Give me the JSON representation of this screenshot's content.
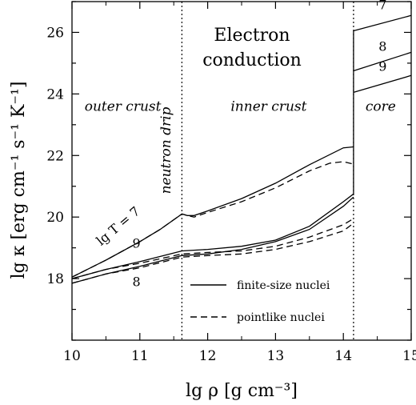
{
  "chart_data": {
    "type": "line",
    "title_lines": [
      "Electron",
      "conduction"
    ],
    "xlabel": "lg ρ  [g cm⁻³]",
    "ylabel": "lg κ  [erg cm⁻¹ s⁻¹ K⁻¹]",
    "xlim": [
      10,
      15
    ],
    "ylim": [
      16,
      27
    ],
    "xticks": [
      10,
      11,
      12,
      13,
      14,
      15
    ],
    "yticks": [
      18,
      20,
      22,
      24,
      26
    ],
    "xtick_labels": [
      "10",
      "11",
      "12",
      "13",
      "14",
      "15"
    ],
    "ytick_labels": [
      "18",
      "20",
      "22",
      "24",
      "26"
    ],
    "boundaries": [
      {
        "x": 11.62,
        "label": "neutron drip"
      },
      {
        "x": 14.15,
        "label": ""
      }
    ],
    "regions": [
      {
        "label": "outer crust",
        "x": 10.75,
        "y": 23.45
      },
      {
        "label": "inner crust",
        "x": 12.9,
        "y": 23.45
      },
      {
        "label": "core",
        "x": 14.55,
        "y": 23.45
      }
    ],
    "legend": {
      "position": "bottom-right",
      "entries": [
        {
          "label": "finite-size nuclei",
          "style": "solid"
        },
        {
          "label": "pointlike nuclei",
          "style": "dashed"
        }
      ]
    },
    "series": [
      {
        "style": "solid",
        "T": 7,
        "x": [
          10,
          10.5,
          11,
          11.3,
          11.62,
          11.7,
          11.8,
          12.0,
          12.5,
          13.0,
          13.5,
          14.0,
          14.15
        ],
        "y": [
          18.05,
          18.6,
          19.2,
          19.6,
          20.1,
          20.05,
          20.05,
          20.2,
          20.6,
          21.1,
          21.7,
          22.25,
          22.28
        ]
      },
      {
        "style": "dashed",
        "T": 7,
        "x": [
          10,
          10.5,
          11,
          11.3,
          11.62,
          11.7,
          11.8,
          12.0,
          12.5,
          13.0,
          13.5,
          13.8,
          14.0,
          14.15
        ],
        "y": [
          18.05,
          18.6,
          19.2,
          19.6,
          20.1,
          20.05,
          20.0,
          20.15,
          20.5,
          20.95,
          21.5,
          21.75,
          21.8,
          21.72
        ]
      },
      {
        "style": "solid",
        "T": 9,
        "x": [
          10,
          10.5,
          11,
          11.62,
          12.0,
          12.5,
          13.0,
          13.5,
          14.0,
          14.15
        ],
        "y": [
          18.0,
          18.3,
          18.55,
          18.9,
          18.95,
          19.05,
          19.25,
          19.7,
          20.5,
          20.75
        ]
      },
      {
        "style": "dashed",
        "T": 9,
        "x": [
          10,
          10.5,
          11,
          11.62,
          12.0,
          12.5,
          13.0,
          13.5,
          14.0,
          14.15
        ],
        "y": [
          18.0,
          18.3,
          18.5,
          18.8,
          18.85,
          18.9,
          19.05,
          19.35,
          19.75,
          19.95
        ]
      },
      {
        "style": "solid",
        "T": 8,
        "x": [
          10,
          10.5,
          11,
          11.62,
          12.0,
          12.5,
          13.0,
          13.5,
          14.0,
          14.15
        ],
        "y": [
          17.85,
          18.15,
          18.4,
          18.75,
          18.8,
          18.95,
          19.2,
          19.6,
          20.35,
          20.65
        ]
      },
      {
        "style": "dashed",
        "T": 8,
        "x": [
          10,
          10.5,
          11,
          11.62,
          12.0,
          12.5,
          13.0,
          13.5,
          14.0,
          14.15
        ],
        "y": [
          17.85,
          18.15,
          18.35,
          18.7,
          18.75,
          18.8,
          18.95,
          19.2,
          19.55,
          19.8
        ]
      },
      {
        "style": "solid",
        "T": 7,
        "x": [
          14.15,
          15
        ],
        "y": [
          26.05,
          26.55
        ]
      },
      {
        "style": "solid",
        "T": 8,
        "x": [
          14.15,
          15
        ],
        "y": [
          24.75,
          25.35
        ]
      },
      {
        "style": "solid",
        "T": 9,
        "x": [
          14.15,
          15
        ],
        "y": [
          24.05,
          24.6
        ]
      }
    ],
    "verticals": [
      {
        "x": 14.15,
        "y": [
          20.75,
          26.05
        ]
      }
    ],
    "curve_labels": [
      {
        "text": "lg T = 7",
        "x": 10.72,
        "y": 19.6,
        "rotate": -40
      },
      {
        "text": "9",
        "x": 10.95,
        "y": 19.0,
        "rotate": 0
      },
      {
        "text": "8",
        "x": 10.95,
        "y": 17.75,
        "rotate": 0
      },
      {
        "text": "7",
        "x": 14.58,
        "y": 26.75,
        "rotate": 0
      },
      {
        "text": "8",
        "x": 14.58,
        "y": 25.4,
        "rotate": 0
      },
      {
        "text": "9",
        "x": 14.58,
        "y": 24.75,
        "rotate": 0
      }
    ]
  }
}
